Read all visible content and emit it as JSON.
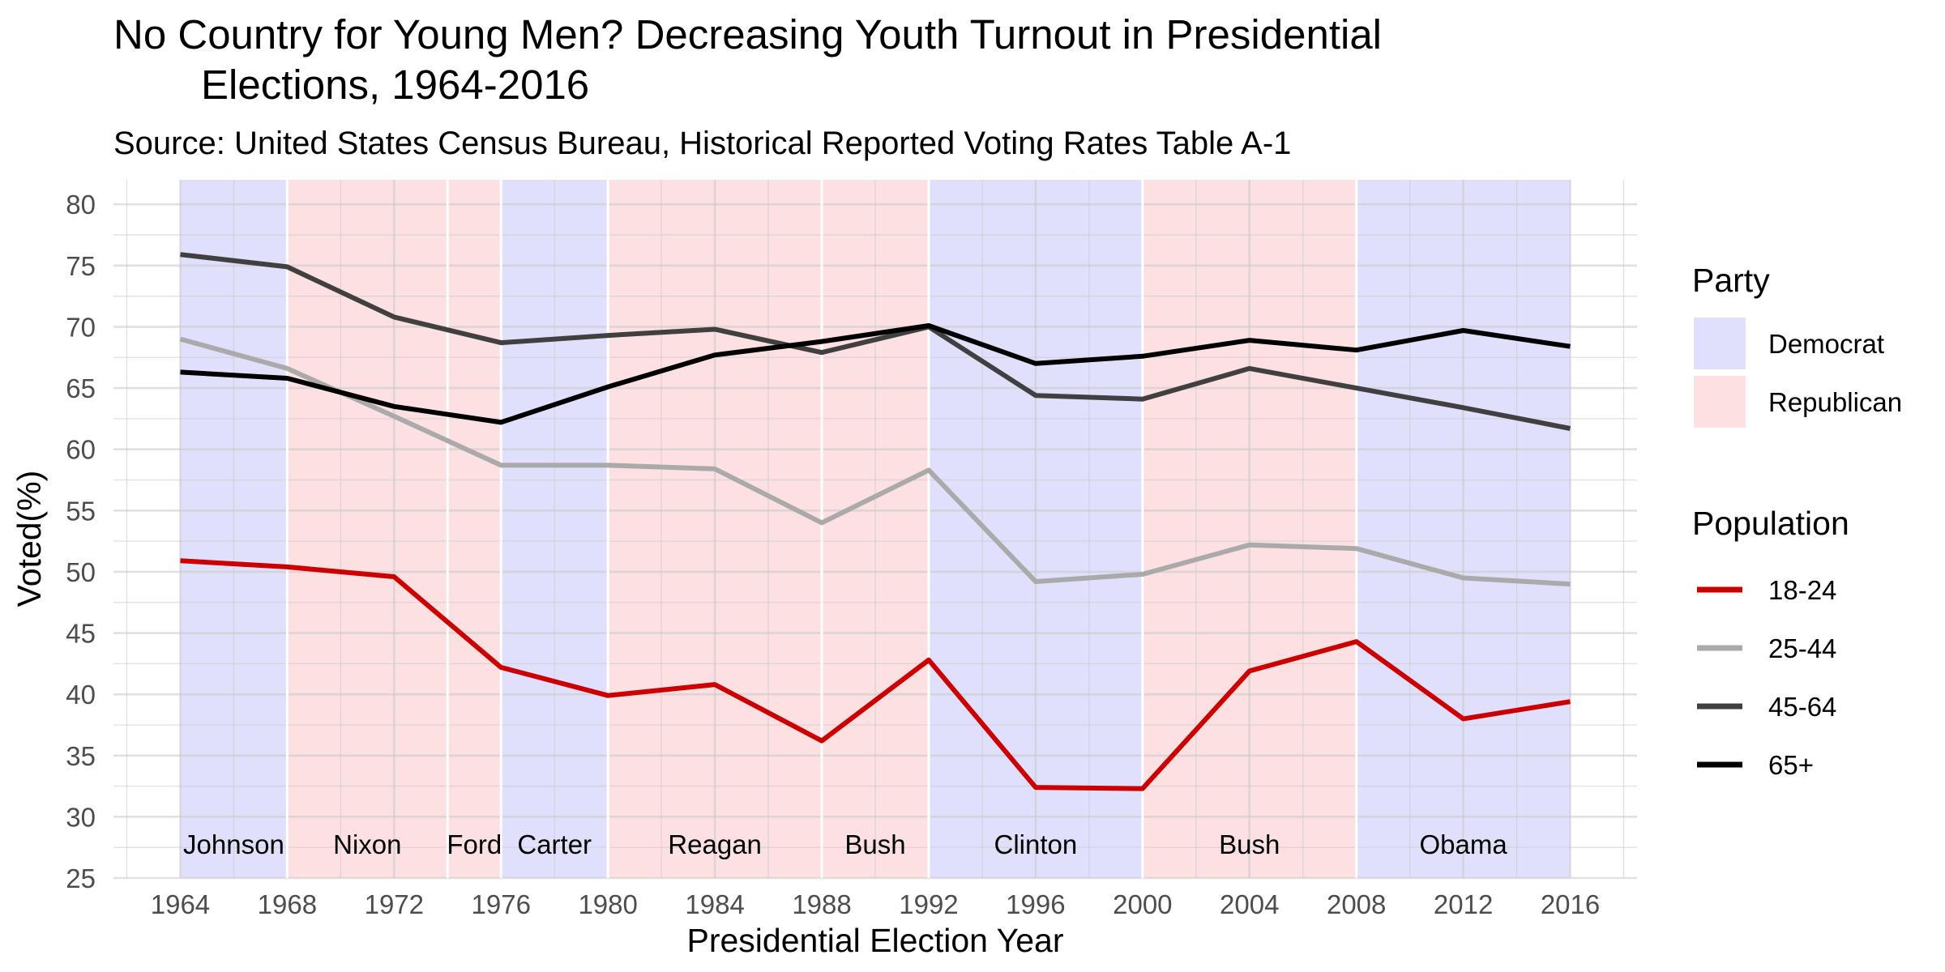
{
  "chart_data": {
    "type": "line",
    "title_line1": "No Country for Young Men? Decreasing Youth Turnout in Presidential",
    "title_line2": "Elections, 1964-2016",
    "subtitle": "Source: United States Census Bureau, Historical Reported Voting Rates Table A-1",
    "xlabel": "Presidential Election Year",
    "ylabel": "Voted(%)",
    "x": [
      1964,
      1968,
      1972,
      1976,
      1980,
      1984,
      1988,
      1992,
      1996,
      2000,
      2004,
      2008,
      2012,
      2016
    ],
    "xlim": [
      1961.5,
      2018.5
    ],
    "ylim": [
      25,
      82
    ],
    "yticks": [
      25,
      30,
      35,
      40,
      45,
      50,
      55,
      60,
      65,
      70,
      75,
      80
    ],
    "series": [
      {
        "name": "18-24",
        "color": "#cc0000",
        "values": [
          50.9,
          50.4,
          49.6,
          42.2,
          39.9,
          40.8,
          36.2,
          42.8,
          32.4,
          32.3,
          41.9,
          44.3,
          38.0,
          39.4
        ]
      },
      {
        "name": "25-44",
        "color": "#aaaaaa",
        "values": [
          69.0,
          66.6,
          62.7,
          58.7,
          58.7,
          58.4,
          54.0,
          58.3,
          49.2,
          49.8,
          52.2,
          51.9,
          49.5,
          49.0
        ]
      },
      {
        "name": "45-64",
        "color": "#404040",
        "values": [
          75.9,
          74.9,
          70.8,
          68.7,
          69.3,
          69.8,
          67.9,
          70.0,
          64.4,
          64.1,
          66.6,
          65.0,
          63.4,
          61.7
        ]
      },
      {
        "name": "65+",
        "color": "#000000",
        "values": [
          66.3,
          65.8,
          63.5,
          62.2,
          65.1,
          67.7,
          68.8,
          70.1,
          67.0,
          67.6,
          68.9,
          68.1,
          69.7,
          68.4
        ]
      }
    ],
    "administrations": [
      {
        "label": "Johnson",
        "party": "Democrat",
        "start": 1964,
        "end": 1968
      },
      {
        "label": "Nixon",
        "party": "Republican",
        "start": 1968,
        "end": 1974
      },
      {
        "label": "Ford",
        "party": "Republican",
        "start": 1974,
        "end": 1976
      },
      {
        "label": "Carter",
        "party": "Democrat",
        "start": 1976,
        "end": 1980
      },
      {
        "label": "Reagan",
        "party": "Republican",
        "start": 1980,
        "end": 1988
      },
      {
        "label": "Bush",
        "party": "Republican",
        "start": 1988,
        "end": 1992
      },
      {
        "label": "Clinton",
        "party": "Democrat",
        "start": 1992,
        "end": 2000
      },
      {
        "label": "Bush",
        "party": "Republican",
        "start": 2000,
        "end": 2008
      },
      {
        "label": "Obama",
        "party": "Democrat",
        "start": 2008,
        "end": 2016
      }
    ],
    "party_colors": {
      "Democrat": "#e0e0fc",
      "Republican": "#fde0e1"
    },
    "legend_party": {
      "title": "Party",
      "entries": [
        "Democrat",
        "Republican"
      ]
    },
    "legend_population": {
      "title": "Population",
      "entries": [
        "18-24",
        "25-44",
        "45-64",
        "65+"
      ]
    },
    "grid": true,
    "legend_position": "right"
  }
}
